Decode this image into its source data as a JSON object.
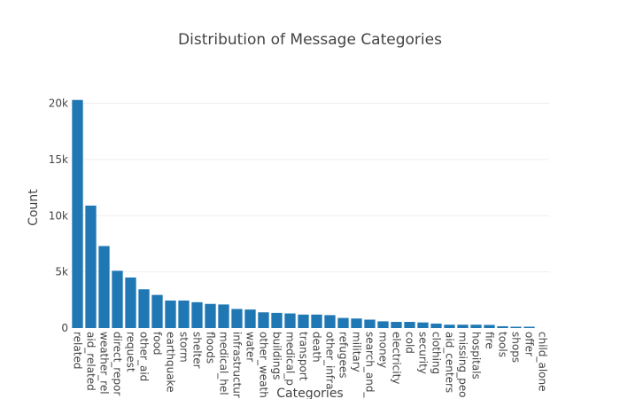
{
  "chart_data": {
    "type": "bar",
    "title": "Distribution of Message Categories",
    "xlabel": "Categories",
    "ylabel": "Count",
    "ylim": [
      0,
      20200
    ],
    "yticks": [
      0,
      5000,
      10000,
      15000,
      20000
    ],
    "ytick_labels": [
      "0",
      "5k",
      "10k",
      "15k",
      "20k"
    ],
    "grid": true,
    "bar_color": "#1f77b4",
    "categories": [
      "related",
      "aid_related",
      "weather_rel",
      "direct_repor",
      "request",
      "other_aid",
      "food",
      "earthquake",
      "storm",
      "shelter",
      "floods",
      "medical_hel",
      "infrastructur",
      "water",
      "other_weath",
      "buildings",
      "medical_p",
      "transport",
      "death",
      "other_infra",
      "refugees",
      "military",
      "search_and_",
      "money",
      "electricity",
      "cold",
      "security",
      "clothing",
      "aid_centers",
      "missing_peo",
      "hospitals",
      "fire",
      "tools",
      "shops",
      "offer",
      "child_alone"
    ],
    "values": [
      20300,
      10900,
      7300,
      5100,
      4500,
      3450,
      2950,
      2450,
      2450,
      2300,
      2150,
      2100,
      1700,
      1650,
      1400,
      1350,
      1300,
      1200,
      1200,
      1150,
      900,
      850,
      750,
      600,
      550,
      550,
      500,
      400,
      300,
      300,
      300,
      280,
      160,
      120,
      120,
      0
    ]
  }
}
